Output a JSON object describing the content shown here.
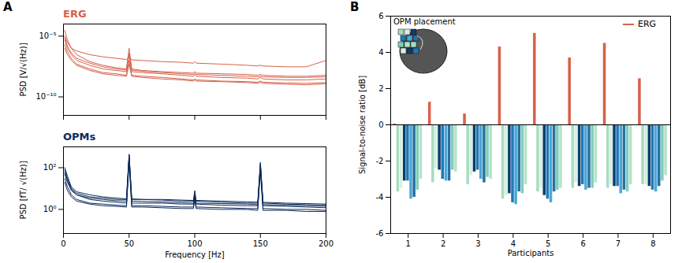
{
  "chart_data": [
    {
      "panel": "A",
      "type": "line",
      "title": "ERG",
      "ylabel": "PSD [V/√(Hz)]",
      "color": "#d9614b",
      "log": "y",
      "tick_labels": "y",
      "xlim": [
        0,
        200
      ],
      "xticks": [
        0,
        50,
        100,
        150,
        200
      ],
      "ylim": [
        3e-12,
        0.0001
      ],
      "yticks": [
        {
          "value": 1e-10,
          "label": "10⁻¹⁰"
        },
        {
          "value": 1e-05,
          "label": "10⁻⁵"
        }
      ],
      "x": [
        1,
        3,
        6,
        10,
        20,
        30,
        40,
        48,
        50,
        52,
        60,
        75,
        90,
        99,
        100,
        101,
        120,
        140,
        148,
        150,
        152,
        170,
        185,
        200
      ],
      "series": [
        {
          "values": [
            1e-05,
            3e-06,
            1e-06,
            6e-07,
            3e-07,
            2e-07,
            1.5e-07,
            1.2e-07,
            2e-07,
            1.1e-07,
            1e-07,
            8e-08,
            7e-08,
            6e-08,
            8e-08,
            6e-08,
            5e-08,
            4e-08,
            3.5e-08,
            4e-08,
            3.5e-08,
            3e-08,
            3e-08,
            1e-07
          ]
        },
        {
          "values": [
            3e-05,
            5e-06,
            1e-06,
            3e-07,
            8e-08,
            4e-08,
            2.5e-08,
            2e-08,
            1e-06,
            2e-08,
            1.5e-08,
            1.2e-08,
            1e-08,
            9e-09,
            1.2e-08,
            9e-09,
            8e-09,
            7e-09,
            6e-09,
            7e-09,
            6e-09,
            5e-09,
            5e-09,
            6e-09
          ]
        },
        {
          "values": [
            5e-06,
            1e-06,
            3e-07,
            1e-07,
            4e-08,
            2e-08,
            1.5e-08,
            1.2e-08,
            3e-07,
            1.2e-08,
            1e-08,
            8e-09,
            6e-09,
            5e-09,
            7e-09,
            5e-09,
            4e-09,
            3.5e-09,
            3e-09,
            4e-09,
            3e-09,
            2.5e-09,
            2.5e-09,
            3e-09
          ]
        },
        {
          "values": [
            2e-06,
            5e-07,
            1.5e-07,
            5e-08,
            2e-08,
            1e-08,
            8e-09,
            6e-09,
            1e-07,
            6e-09,
            5e-09,
            4e-09,
            3e-09,
            2.5e-09,
            3e-09,
            2.5e-09,
            2e-09,
            1.8e-09,
            1.6e-09,
            2e-09,
            1.6e-09,
            1.4e-09,
            1.3e-09,
            1.5e-09
          ]
        },
        {
          "values": [
            1e-06,
            3e-07,
            1e-07,
            4e-08,
            1.5e-08,
            8e-09,
            6e-09,
            5e-09,
            5e-08,
            5e-09,
            4e-09,
            3e-09,
            2.5e-09,
            2e-09,
            2.5e-09,
            2e-09,
            1.8e-09,
            1.5e-09,
            1.3e-09,
            1.6e-09,
            1.3e-09,
            1.1e-09,
            1e-09,
            1.2e-09
          ]
        },
        {
          "values": [
            8e-06,
            1.5e-06,
            4e-07,
            1.5e-07,
            6e-08,
            3e-08,
            2e-08,
            1.6e-08,
            4e-07,
            1.6e-08,
            1.3e-08,
            1e-08,
            8e-09,
            7e-09,
            9e-09,
            7e-09,
            6e-09,
            5e-09,
            4.5e-09,
            5e-09,
            4.5e-09,
            4e-09,
            4e-09,
            4.5e-09
          ]
        }
      ]
    },
    {
      "type": "line",
      "title": "OPMs",
      "ylabel": "PSD [fT/ √(Hz)]",
      "xlabel": "Frequency [Hz]",
      "color": "#0d2b5a",
      "log": "y",
      "xlim": [
        0,
        200
      ],
      "xticks": [
        0,
        50,
        100,
        150,
        200
      ],
      "ylim": [
        0.07,
        1000
      ],
      "yticks": [
        {
          "value": 1,
          "label": "10⁰"
        },
        {
          "value": 100,
          "label": "10²"
        }
      ],
      "x": [
        1,
        3,
        6,
        10,
        20,
        30,
        40,
        48,
        50,
        52,
        60,
        75,
        90,
        99,
        100,
        101,
        120,
        140,
        148,
        150,
        152,
        170,
        185,
        200
      ],
      "series": [
        {
          "values": [
            80,
            30,
            10,
            6,
            4,
            3.5,
            3,
            3,
            400,
            3,
            3,
            2.8,
            2.5,
            2.5,
            6,
            2.5,
            2.2,
            2,
            2,
            150,
            2,
            1.8,
            1.7,
            1.6
          ]
        },
        {
          "values": [
            50,
            20,
            8,
            5,
            3,
            2.5,
            2.2,
            2,
            300,
            2,
            2,
            2,
            1.8,
            1.8,
            5,
            1.8,
            1.6,
            1.5,
            1.5,
            120,
            1.5,
            1.4,
            1.3,
            1.2
          ]
        },
        {
          "values": [
            30,
            12,
            5,
            3,
            2,
            1.8,
            1.6,
            1.5,
            250,
            1.5,
            1.5,
            1.4,
            1.3,
            1.3,
            4,
            1.3,
            1.2,
            1.1,
            1.1,
            100,
            1.1,
            1,
            1,
            0.9
          ]
        },
        {
          "values": [
            100,
            40,
            12,
            7,
            5,
            4,
            3.5,
            3.2,
            450,
            3.2,
            3,
            3,
            2.8,
            2.7,
            8,
            2.7,
            2.5,
            2.3,
            2.2,
            180,
            2.2,
            2,
            1.9,
            1.8
          ]
        },
        {
          "values": [
            20,
            8,
            4,
            2.5,
            1.8,
            1.5,
            1.4,
            1.3,
            200,
            1.3,
            1.3,
            1.2,
            1.1,
            1.1,
            3,
            1.1,
            1,
            1,
            0.9,
            80,
            0.9,
            0.9,
            0.8,
            0.8
          ]
        },
        {
          "values": [
            60,
            25,
            9,
            5,
            3.5,
            3,
            2.6,
            2.5,
            350,
            2.5,
            2.4,
            2.3,
            2.1,
            2,
            5,
            2,
            1.9,
            1.8,
            1.7,
            130,
            1.7,
            1.6,
            1.5,
            1.4
          ]
        }
      ]
    },
    {
      "panel": "B",
      "type": "bar",
      "xlabel": "Participants",
      "ylabel": "Signal-to-noise ratio [dB]",
      "categories": [
        "1",
        "2",
        "3",
        "4",
        "5",
        "6",
        "7",
        "8"
      ],
      "ylim": [
        -6,
        6
      ],
      "yticks": [
        -6,
        -4,
        -2,
        0,
        2,
        4,
        6
      ],
      "legend": "top-right",
      "annotations": [
        "OPM placement"
      ],
      "series": [
        {
          "name": "ERG",
          "color": "#d9614b",
          "values": [
            0.05,
            1.25,
            0.6,
            4.3,
            5.05,
            3.7,
            4.5,
            2.55
          ]
        },
        {
          "color": "#a8dcc0",
          "values": [
            -3.7,
            -3.2,
            -3.3,
            -4.1,
            -3.7,
            -3.5,
            -3.5,
            -3.3
          ]
        },
        {
          "color": "#d6efe2",
          "values": [
            -3.5,
            -2.4,
            -2.8,
            -3.9,
            -3.5,
            -3.2,
            -3.3,
            -3.3
          ]
        },
        {
          "color": "#0b3d6e",
          "values": [
            -3.1,
            -2.5,
            -2.6,
            -3.8,
            -3.9,
            -3.4,
            -3.4,
            -3.4
          ]
        },
        {
          "color": "#1f78b4",
          "values": [
            -3.1,
            -3.0,
            -2.5,
            -4.3,
            -4.1,
            -3.3,
            -3.4,
            -3.6
          ]
        },
        {
          "color": "#4aa8d8",
          "values": [
            -4.1,
            -3.1,
            -3.0,
            -4.4,
            -4.3,
            -3.6,
            -3.8,
            -3.7
          ]
        },
        {
          "color": "#2b6f9e",
          "values": [
            -4.0,
            -3.1,
            -3.2,
            -3.7,
            -3.7,
            -3.5,
            -3.6,
            -3.4
          ]
        },
        {
          "color": "#7fcdbb",
          "values": [
            -3.6,
            -2.5,
            -2.9,
            -3.8,
            -3.6,
            -3.5,
            -3.7,
            -3.1
          ]
        },
        {
          "color": "#b5e3c8",
          "values": [
            -3.0,
            -2.6,
            -3.0,
            -3.3,
            -3.5,
            -3.2,
            -3.3,
            -2.8
          ]
        }
      ]
    }
  ]
}
